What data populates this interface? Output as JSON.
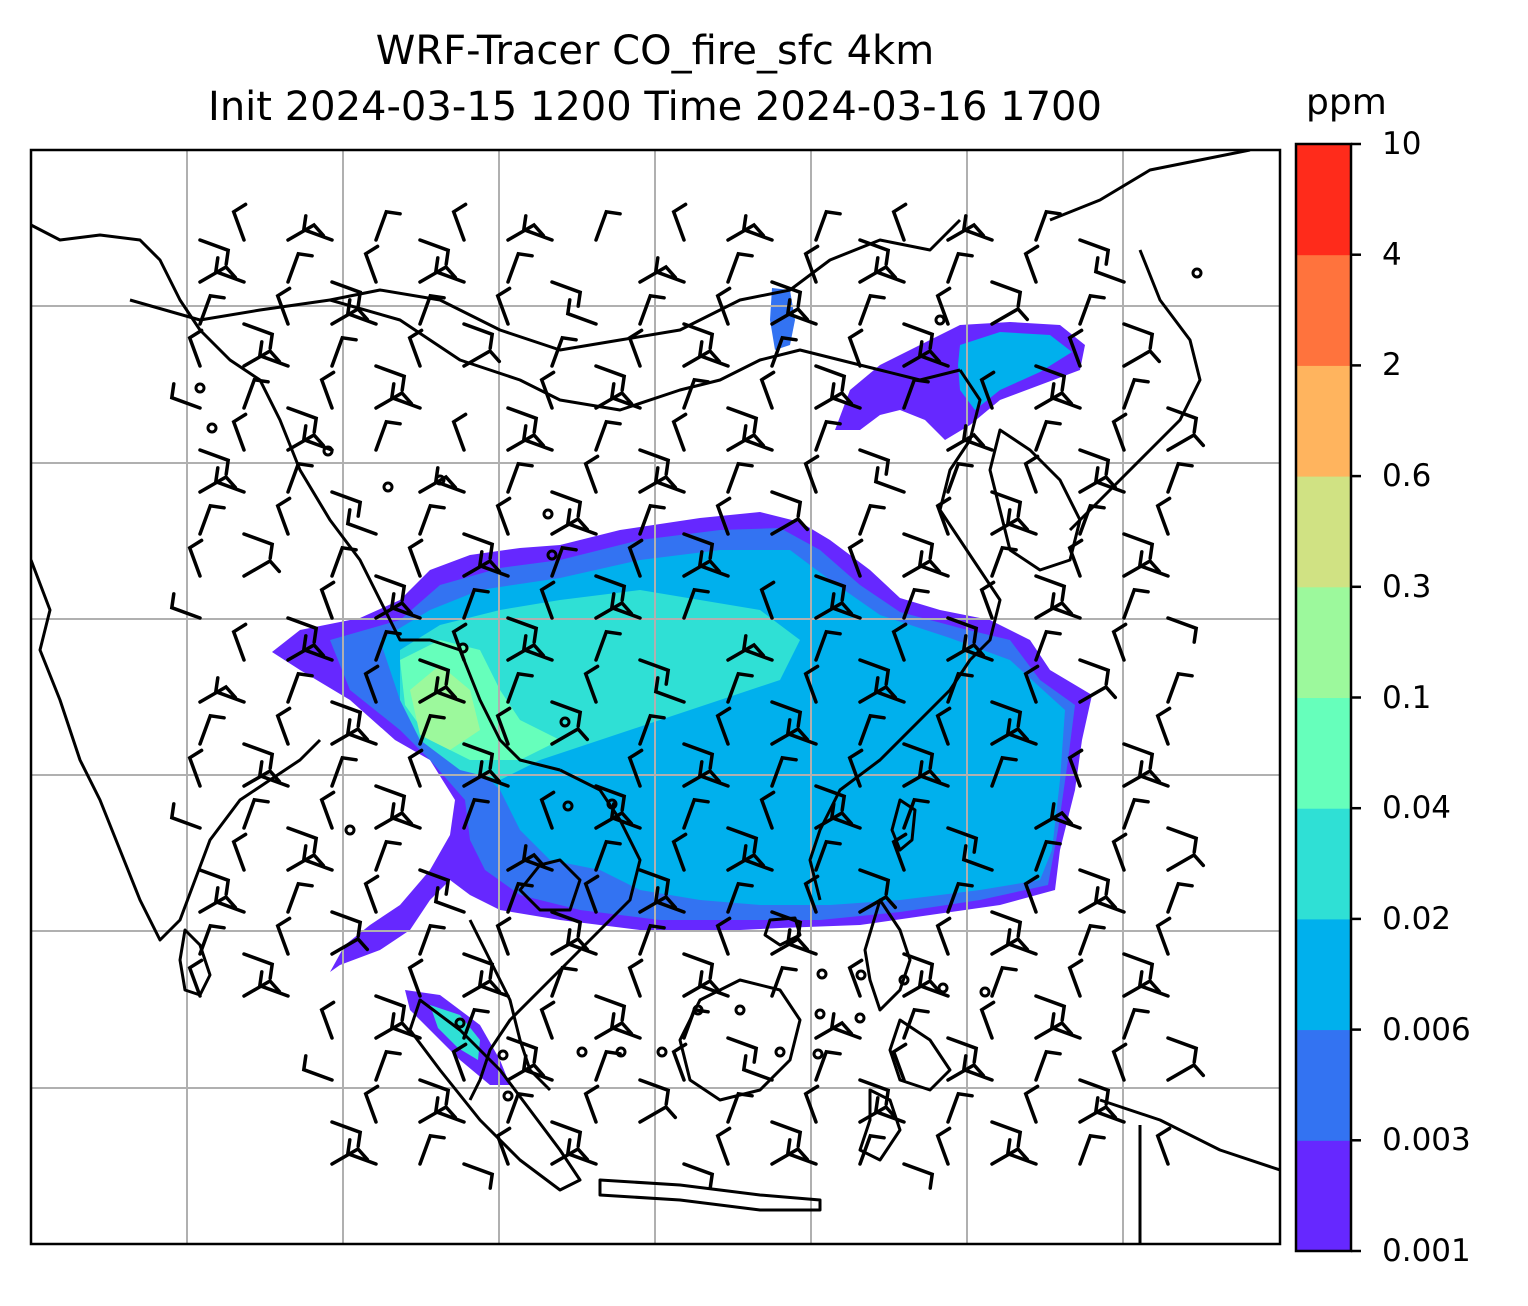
{
  "title": {
    "line1": "WRF-Tracer CO_fire_sfc 4km",
    "line2": "Init 2024-03-15 1200 Time 2024-03-16 1700"
  },
  "colorbar": {
    "unit": "ppm",
    "levels": [
      "0.001",
      "0.003",
      "0.006",
      "0.02",
      "0.04",
      "0.1",
      "0.3",
      "0.6",
      "2",
      "4",
      "10"
    ],
    "colors": [
      "#6628ff",
      "#3373f2",
      "#00b0ed",
      "#2fe0d5",
      "#66ffbb",
      "#9cf99c",
      "#d0e283",
      "#ffb45e",
      "#ff733d",
      "#ff2b1b"
    ]
  },
  "map": {
    "background": "#ffffff",
    "coastline_color": "#000000",
    "gridline_color": "#b0b0b0",
    "barb_color": "#000000",
    "gridlines": true
  }
}
